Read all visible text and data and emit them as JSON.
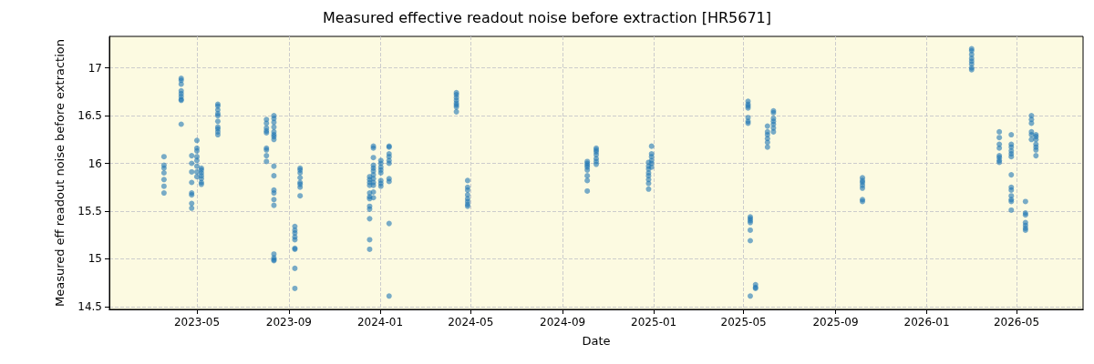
{
  "chart_data": {
    "type": "scatter",
    "title": "Measured effective readout noise before extraction [HR5671]",
    "xlabel": "Date",
    "ylabel": "Measured eff readout noise before extraction",
    "color": "#1f77b4",
    "marker": "circle",
    "grid": true,
    "xlim": [
      "2023-01-04",
      "2026-07-29"
    ],
    "xticks": [
      "2023-05",
      "2023-09",
      "2024-01",
      "2024-05",
      "2024-09",
      "2025-01",
      "2025-05",
      "2025-09",
      "2026-01",
      "2026-05"
    ],
    "ylim": [
      14.47,
      17.33
    ],
    "yticks": [
      14.5,
      15.0,
      15.5,
      16.0,
      16.5,
      17.0
    ],
    "x": [
      "2023-03-18",
      "2023-03-18",
      "2023-03-18",
      "2023-03-18",
      "2023-03-18",
      "2023-03-18",
      "2023-03-18",
      "2023-04-10",
      "2023-04-10",
      "2023-04-10",
      "2023-04-10",
      "2023-04-10",
      "2023-04-10",
      "2023-04-10",
      "2023-04-10",
      "2023-04-10",
      "2023-04-24",
      "2023-04-24",
      "2023-04-24",
      "2023-04-24",
      "2023-04-24",
      "2023-04-24",
      "2023-04-24",
      "2023-04-24",
      "2023-05-01",
      "2023-05-01",
      "2023-05-01",
      "2023-05-01",
      "2023-05-01",
      "2023-05-01",
      "2023-05-01",
      "2023-05-01",
      "2023-05-07",
      "2023-05-07",
      "2023-05-07",
      "2023-05-07",
      "2023-05-07",
      "2023-05-07",
      "2023-05-07",
      "2023-05-29",
      "2023-05-29",
      "2023-05-29",
      "2023-05-29",
      "2023-05-29",
      "2023-05-29",
      "2023-05-29",
      "2023-05-29",
      "2023-05-29",
      "2023-05-29",
      "2023-08-02",
      "2023-08-02",
      "2023-08-02",
      "2023-08-02",
      "2023-08-02",
      "2023-08-02",
      "2023-08-02",
      "2023-08-02",
      "2023-08-02",
      "2023-08-12",
      "2023-08-12",
      "2023-08-12",
      "2023-08-12",
      "2023-08-12",
      "2023-08-12",
      "2023-08-12",
      "2023-08-12",
      "2023-08-12",
      "2023-08-12",
      "2023-08-12",
      "2023-08-12",
      "2023-08-12",
      "2023-08-12",
      "2023-08-12",
      "2023-08-12",
      "2023-08-12",
      "2023-08-12",
      "2023-09-09",
      "2023-09-09",
      "2023-09-09",
      "2023-09-09",
      "2023-09-09",
      "2023-09-09",
      "2023-09-09",
      "2023-09-09",
      "2023-09-09",
      "2023-09-16",
      "2023-09-16",
      "2023-09-16",
      "2023-09-16",
      "2023-09-16",
      "2023-09-16",
      "2023-09-16",
      "2023-09-16",
      "2023-12-18",
      "2023-12-18",
      "2023-12-18",
      "2023-12-18",
      "2023-12-18",
      "2023-12-18",
      "2023-12-18",
      "2023-12-18",
      "2023-12-18",
      "2023-12-18",
      "2023-12-18",
      "2023-12-18",
      "2023-12-23",
      "2023-12-23",
      "2023-12-23",
      "2023-12-23",
      "2023-12-23",
      "2023-12-23",
      "2023-12-23",
      "2023-12-23",
      "2023-12-23",
      "2023-12-23",
      "2023-12-23",
      "2023-12-23",
      "2024-01-02",
      "2024-01-02",
      "2024-01-02",
      "2024-01-02",
      "2024-01-02",
      "2024-01-02",
      "2024-01-02",
      "2024-01-02",
      "2024-01-13",
      "2024-01-13",
      "2024-01-13",
      "2024-01-13",
      "2024-01-13",
      "2024-01-13",
      "2024-01-13",
      "2024-01-13",
      "2024-01-13",
      "2024-01-13",
      "2024-04-12",
      "2024-04-12",
      "2024-04-12",
      "2024-04-12",
      "2024-04-12",
      "2024-04-12",
      "2024-04-12",
      "2024-04-12",
      "2024-04-27",
      "2024-04-27",
      "2024-04-27",
      "2024-04-27",
      "2024-04-27",
      "2024-04-27",
      "2024-04-27",
      "2024-04-27",
      "2024-10-04",
      "2024-10-04",
      "2024-10-04",
      "2024-10-04",
      "2024-10-04",
      "2024-10-04",
      "2024-10-04",
      "2024-10-04",
      "2024-10-16",
      "2024-10-16",
      "2024-10-16",
      "2024-10-16",
      "2024-10-16",
      "2024-10-16",
      "2024-10-16",
      "2024-12-25",
      "2024-12-25",
      "2024-12-25",
      "2024-12-25",
      "2024-12-25",
      "2024-12-25",
      "2024-12-25",
      "2024-12-25",
      "2024-12-29",
      "2024-12-29",
      "2024-12-29",
      "2024-12-29",
      "2024-12-29",
      "2024-12-29",
      "2025-05-07",
      "2025-05-07",
      "2025-05-07",
      "2025-05-07",
      "2025-05-07",
      "2025-05-07",
      "2025-05-07",
      "2025-05-10",
      "2025-05-10",
      "2025-05-10",
      "2025-05-10",
      "2025-05-10",
      "2025-05-10",
      "2025-05-10",
      "2025-05-17",
      "2025-05-17",
      "2025-05-17",
      "2025-06-02",
      "2025-06-02",
      "2025-06-02",
      "2025-06-02",
      "2025-06-02",
      "2025-06-02",
      "2025-06-10",
      "2025-06-10",
      "2025-06-10",
      "2025-06-10",
      "2025-06-10",
      "2025-06-10",
      "2025-06-10",
      "2025-10-07",
      "2025-10-07",
      "2025-10-07",
      "2025-10-07",
      "2025-10-07",
      "2025-10-07",
      "2025-10-07",
      "2026-03-02",
      "2026-03-02",
      "2026-03-02",
      "2026-03-02",
      "2026-03-02",
      "2026-03-02",
      "2026-03-02",
      "2026-03-02",
      "2026-04-08",
      "2026-04-08",
      "2026-04-08",
      "2026-04-08",
      "2026-04-08",
      "2026-04-08",
      "2026-04-08",
      "2026-04-08",
      "2026-04-24",
      "2026-04-24",
      "2026-04-24",
      "2026-04-24",
      "2026-04-24",
      "2026-04-24",
      "2026-04-24",
      "2026-04-24",
      "2026-04-24",
      "2026-04-24",
      "2026-04-24",
      "2026-04-24",
      "2026-04-24",
      "2026-05-13",
      "2026-05-13",
      "2026-05-13",
      "2026-05-13",
      "2026-05-13",
      "2026-05-13",
      "2026-05-13",
      "2026-05-21",
      "2026-05-21",
      "2026-05-21",
      "2026-05-21",
      "2026-05-21",
      "2026-05-21",
      "2026-05-27",
      "2026-05-27",
      "2026-05-27",
      "2026-05-27",
      "2026-05-27",
      "2026-05-27",
      "2026-05-27"
    ],
    "values": [
      16.07,
      15.98,
      15.95,
      15.9,
      15.83,
      15.76,
      15.69,
      16.89,
      16.87,
      16.83,
      16.76,
      16.73,
      16.7,
      16.67,
      16.66,
      16.41,
      16.08,
      16.0,
      15.91,
      15.8,
      15.69,
      15.67,
      15.58,
      15.53,
      16.24,
      16.16,
      16.13,
      16.07,
      16.03,
      15.97,
      15.91,
      15.86,
      15.95,
      15.93,
      15.9,
      15.87,
      15.84,
      15.8,
      15.78,
      16.62,
      16.6,
      16.56,
      16.52,
      16.5,
      16.44,
      16.38,
      16.36,
      16.33,
      16.3,
      16.46,
      16.42,
      16.37,
      16.34,
      16.32,
      16.16,
      16.14,
      16.08,
      16.02,
      16.5,
      16.47,
      16.43,
      16.38,
      16.33,
      16.3,
      16.28,
      16.25,
      15.97,
      15.87,
      15.72,
      15.69,
      15.62,
      15.56,
      15.05,
      15.01,
      14.99,
      14.98,
      15.34,
      15.3,
      15.27,
      15.23,
      15.2,
      15.11,
      15.1,
      14.9,
      14.69,
      15.95,
      15.93,
      15.9,
      15.85,
      15.8,
      15.78,
      15.75,
      15.66,
      15.86,
      15.83,
      15.8,
      15.77,
      15.69,
      15.65,
      15.63,
      15.55,
      15.52,
      15.42,
      15.2,
      15.1,
      16.18,
      16.16,
      16.06,
      15.98,
      15.95,
      15.92,
      15.88,
      15.84,
      15.8,
      15.77,
      15.7,
      15.64,
      16.03,
      16.0,
      15.96,
      15.93,
      15.9,
      15.82,
      15.79,
      15.76,
      16.18,
      16.17,
      16.1,
      16.07,
      16.03,
      16.0,
      15.84,
      15.81,
      15.37,
      14.61,
      16.74,
      16.72,
      16.69,
      16.66,
      16.63,
      16.61,
      16.59,
      16.54,
      15.82,
      15.75,
      15.72,
      15.67,
      15.63,
      15.6,
      15.57,
      15.55,
      16.02,
      16.0,
      15.98,
      15.96,
      15.93,
      15.87,
      15.82,
      15.71,
      16.16,
      16.14,
      16.12,
      16.09,
      16.05,
      16.02,
      15.99,
      16.01,
      15.97,
      15.94,
      15.9,
      15.87,
      15.83,
      15.79,
      15.73,
      16.18,
      16.1,
      16.07,
      16.03,
      16.0,
      15.96,
      16.65,
      16.62,
      16.6,
      16.58,
      16.48,
      16.44,
      16.42,
      15.44,
      15.42,
      15.4,
      15.38,
      15.3,
      15.19,
      14.61,
      14.73,
      14.7,
      14.69,
      16.39,
      16.33,
      16.3,
      16.26,
      16.22,
      16.17,
      16.55,
      16.53,
      16.47,
      16.44,
      16.41,
      16.37,
      16.33,
      15.85,
      15.82,
      15.8,
      15.77,
      15.74,
      15.62,
      15.6,
      17.2,
      17.18,
      17.14,
      17.1,
      17.07,
      17.04,
      17.0,
      16.98,
      16.33,
      16.27,
      16.2,
      16.16,
      16.08,
      16.06,
      16.03,
      16.01,
      16.3,
      16.2,
      16.17,
      16.13,
      16.1,
      16.07,
      15.88,
      15.75,
      15.72,
      15.66,
      15.62,
      15.6,
      15.51,
      15.6,
      15.48,
      15.46,
      15.38,
      15.35,
      15.32,
      15.3,
      16.5,
      16.46,
      16.42,
      16.33,
      16.3,
      16.25,
      16.3,
      16.28,
      16.25,
      16.2,
      16.17,
      16.14,
      16.08
    ]
  }
}
